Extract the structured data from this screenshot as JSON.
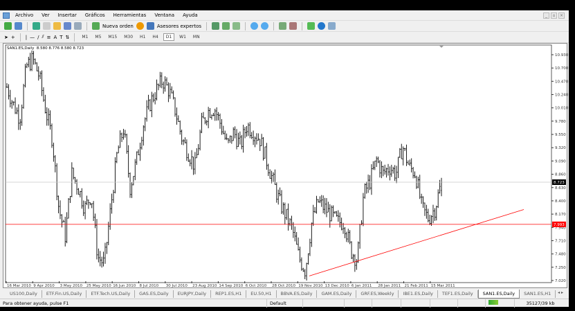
{
  "menu": [
    "Archivo",
    "Ver",
    "Insertar",
    "Gráficos",
    "Herramientas",
    "Ventana",
    "Ayuda"
  ],
  "toolbar": {
    "new_order": "Nueva orden",
    "experts": "Asesores expertos"
  },
  "timeframes": [
    "M1",
    "M5",
    "M15",
    "M30",
    "H1",
    "H4",
    "D1",
    "W1",
    "MN"
  ],
  "active_timeframe": "D1",
  "chart": {
    "legend": "SAN1.ES,Daily  8.580 8.776 8.580 8.723"
  },
  "chart_data": {
    "type": "ohlc",
    "symbol": "SAN1.ES",
    "timeframe": "Daily",
    "ylim": [
      7.02,
      10.93
    ],
    "y_ticks": [
      "10.930",
      "10.700",
      "10.470",
      "10.240",
      "10.010",
      "9.780",
      "9.550",
      "9.320",
      "9.090",
      "8.860",
      "8.630",
      "8.400",
      "8.170",
      "7.940",
      "7.710",
      "7.480",
      "7.250",
      "7.020"
    ],
    "x_ticks": [
      "16 Mar 2010",
      "9 Apr 2010",
      "3 May 2010",
      "25 May 2010",
      "16 Jun 2010",
      "8 Jul 2010",
      "30 Jul 2010",
      "23 Aug 2010",
      "14 Sep 2010",
      "6 Oct 2010",
      "28 Oct 2010",
      "19 Nov 2010",
      "13 Dec 2010",
      "6 Jan 2011",
      "28 Jan 2011",
      "21 Feb 2011",
      "15 Mar 2011"
    ],
    "closes_approx": [
      10.37,
      10.07,
      9.83,
      10.73,
      10.85,
      10.55,
      9.95,
      9.47,
      8.27,
      7.79,
      8.87,
      8.63,
      8.27,
      8.51,
      7.43,
      7.31,
      8.27,
      9.23,
      9.65,
      8.63,
      9.11,
      9.71,
      10.07,
      10.31,
      10.49,
      10.31,
      9.95,
      9.47,
      9.23,
      8.99,
      9.71,
      9.95,
      10.01,
      9.71,
      9.35,
      9.59,
      9.35,
      9.71,
      9.59,
      9.47,
      9.11,
      8.75,
      8.39,
      8.15,
      7.91,
      7.43,
      7.19,
      8.03,
      8.39,
      8.27,
      8.15,
      8.03,
      8.03,
      7.55,
      7.37,
      8.51,
      8.75,
      9.11,
      8.87,
      8.99,
      8.87,
      9.35,
      8.99,
      8.87,
      8.27,
      8.09,
      8.27,
      8.723
    ],
    "last_price": "8.723",
    "horizontal_line": {
      "price": "7.993",
      "color": "#ff0000"
    },
    "trendline": {
      "from": 7.1,
      "to": 8.25,
      "color": "#ff0000"
    },
    "bar_color": "#000000"
  },
  "tabs": [
    "US100,Daily",
    "ETF.Fin.US,Daily",
    "ETF.Tech.US,Daily",
    "GAS.ES,Daily",
    "EURJPY,Daily",
    "REP1.ES,H1",
    "EU.50,H1",
    "BBVA.ES,Daily",
    "GAM.ES,Daily",
    "GRF.ES,Weekly",
    "IBE1.ES,Daily",
    "TEF1.ES,Daily",
    "SAN1.ES,Daily",
    "SAN1.ES,H1"
  ],
  "active_tab": "SAN1.ES,Daily",
  "status": {
    "help": "Para obtener ayuda, pulse F1",
    "profile": "Default",
    "traffic": "35127/39 kb"
  }
}
